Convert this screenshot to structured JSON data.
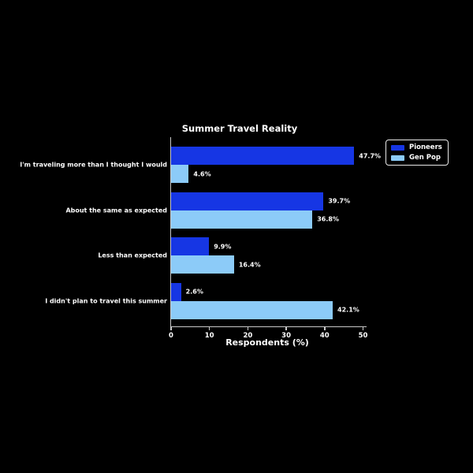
{
  "chart_data": {
    "type": "bar",
    "orientation": "horizontal",
    "title": "Summer Travel Reality",
    "xlabel": "Respondents (%)",
    "ylabel": "",
    "categories": [
      "I'm traveling more than I thought I would",
      "About the same as expected",
      "Less than expected",
      "I didn't plan to travel this summer"
    ],
    "series": [
      {
        "name": "Pioneers",
        "color": "#1636e4",
        "values": [
          47.7,
          39.7,
          9.9,
          2.6
        ]
      },
      {
        "name": "Gen Pop",
        "color": "#8ccbf8",
        "values": [
          4.6,
          36.8,
          16.4,
          42.1
        ]
      }
    ],
    "value_labels": [
      [
        "47.7%",
        "39.7%",
        "9.9%",
        "2.6%"
      ],
      [
        "4.6%",
        "36.8%",
        "16.4%",
        "42.1%"
      ]
    ],
    "xlim": [
      0,
      50
    ],
    "xticks": [
      "0",
      "10",
      "20",
      "30",
      "40",
      "50"
    ],
    "xtick_values": [
      0,
      10,
      20,
      30,
      40,
      50
    ],
    "grid": false,
    "legend_position": "upper right outside plot",
    "legend_entries": [
      "Pioneers",
      "Gen Pop"
    ]
  },
  "colors": {
    "background": "#000000",
    "text": "#ffffff",
    "axis": "#c8c8c8",
    "pioneers": "#1636e4",
    "gen_pop": "#8ccbf8"
  }
}
